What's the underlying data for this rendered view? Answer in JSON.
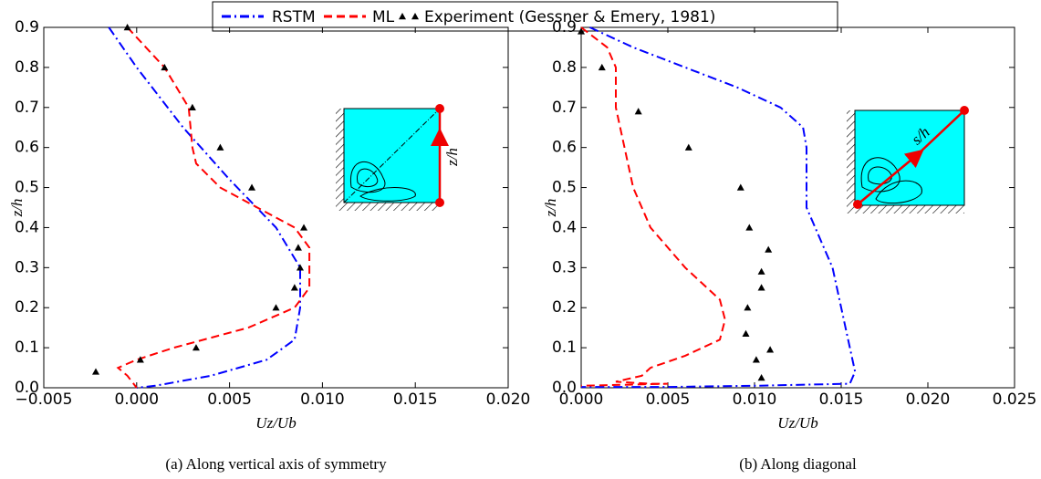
{
  "chart_data": [
    {
      "type": "line",
      "title": "(a) Along vertical axis of symmetry",
      "x_label": "Uz/Ub",
      "y_label": "z/h",
      "inset_label": "z/h",
      "xlim": [
        -0.005,
        0.02
      ],
      "ylim": [
        0,
        0.9
      ],
      "xticks": [
        {
          "value": -0.005,
          "label": "−0.005"
        },
        {
          "value": 0,
          "label": "0.000"
        },
        0.005,
        {
          "value": 0.01,
          "label": "0.010"
        },
        0.015,
        {
          "value": 0.02,
          "label": "0.020"
        }
      ],
      "yticks": [
        {
          "value": 0,
          "label": "0.0"
        },
        0.1,
        0.2,
        0.3,
        0.4,
        0.5,
        0.6,
        0.7,
        0.8,
        0.9
      ],
      "series": [
        {
          "name": "RSTM",
          "color": "#0000ff",
          "dash": "dashdot",
          "x": [
            -0.0015,
            0.0,
            0.0025,
            0.005,
            0.0075,
            0.0088,
            0.0088,
            0.0085,
            0.007,
            0.004,
            0.001,
            0.0
          ],
          "values": [
            0.9,
            0.8,
            0.65,
            0.52,
            0.4,
            0.3,
            0.2,
            0.12,
            0.07,
            0.03,
            0.005,
            0.0
          ]
        },
        {
          "name": "ML",
          "color": "#ff0000",
          "dash": "dashed",
          "x": [
            -0.0005,
            0.0015,
            0.0028,
            0.003,
            0.0032,
            0.0045,
            0.0065,
            0.0085,
            0.0093,
            0.0093,
            0.0085,
            0.006,
            0.002,
            0.0,
            -0.001,
            -0.0005,
            0.0
          ],
          "values": [
            0.9,
            0.8,
            0.7,
            0.6,
            0.56,
            0.5,
            0.45,
            0.4,
            0.35,
            0.25,
            0.2,
            0.15,
            0.1,
            0.07,
            0.05,
            0.03,
            0.0
          ]
        },
        {
          "name": "Experiment (Gessner & Emery, 1981)",
          "color": "#000000",
          "marker": "triangle",
          "x": [
            -0.0022,
            0.0002,
            0.0032,
            0.0075,
            0.0085,
            0.0088,
            0.0087,
            0.009,
            0.0062,
            0.0045,
            0.003,
            0.0015,
            -0.0005
          ],
          "values": [
            0.04,
            0.07,
            0.1,
            0.2,
            0.25,
            0.3,
            0.35,
            0.4,
            0.5,
            0.6,
            0.7,
            0.8,
            0.9
          ]
        }
      ]
    },
    {
      "type": "line",
      "title": "(b) Along diagonal",
      "x_label": "Uz/Ub",
      "y_label": "z/h",
      "inset_label": "s/h",
      "xlim": [
        0,
        0.025
      ],
      "ylim": [
        0,
        0.9
      ],
      "xticks": [
        {
          "value": 0,
          "label": "0.000"
        },
        0.005,
        {
          "value": 0.01,
          "label": "0.010"
        },
        0.015,
        {
          "value": 0.02,
          "label": "0.020"
        },
        0.025
      ],
      "yticks": [
        {
          "value": 0,
          "label": "0.0"
        },
        0.1,
        0.2,
        0.3,
        0.4,
        0.5,
        0.6,
        0.7,
        0.8,
        0.9
      ],
      "series": [
        {
          "name": "RSTM",
          "color": "#0000ff",
          "dash": "dashdot",
          "x": [
            0.0005,
            0.003,
            0.006,
            0.009,
            0.0115,
            0.0128,
            0.013,
            0.013,
            0.013,
            0.0135,
            0.014,
            0.0145,
            0.015,
            0.0155,
            0.0158,
            0.0155,
            0.01,
            0.005,
            0.0
          ],
          "values": [
            0.9,
            0.85,
            0.8,
            0.75,
            0.7,
            0.65,
            0.6,
            0.5,
            0.45,
            0.4,
            0.35,
            0.3,
            0.2,
            0.1,
            0.04,
            0.01,
            0.005,
            0.002,
            0.002
          ]
        },
        {
          "name": "ML",
          "color": "#ff0000",
          "dash": "dashed",
          "x": [
            0.0,
            0.0015,
            0.002,
            0.002,
            0.0025,
            0.003,
            0.004,
            0.006,
            0.008,
            0.0083,
            0.008,
            0.006,
            0.004,
            0.0035,
            0.002,
            0.004,
            0.005,
            0.0
          ],
          "values": [
            0.9,
            0.85,
            0.8,
            0.7,
            0.6,
            0.5,
            0.4,
            0.3,
            0.22,
            0.17,
            0.12,
            0.08,
            0.05,
            0.03,
            0.015,
            0.01,
            0.01,
            0.005
          ]
        },
        {
          "name": "Experiment (Gessner & Emery, 1981)",
          "color": "#000000",
          "marker": "triangle",
          "x": [
            0.0,
            0.0012,
            0.0033,
            0.0062,
            0.0092,
            0.0097,
            0.0108,
            0.0104,
            0.0104,
            0.0096,
            0.0095,
            0.0109,
            0.0101,
            0.0104
          ],
          "values": [
            0.89,
            0.8,
            0.69,
            0.6,
            0.5,
            0.4,
            0.345,
            0.29,
            0.25,
            0.2,
            0.135,
            0.095,
            0.07,
            0.025
          ]
        }
      ]
    }
  ]
}
